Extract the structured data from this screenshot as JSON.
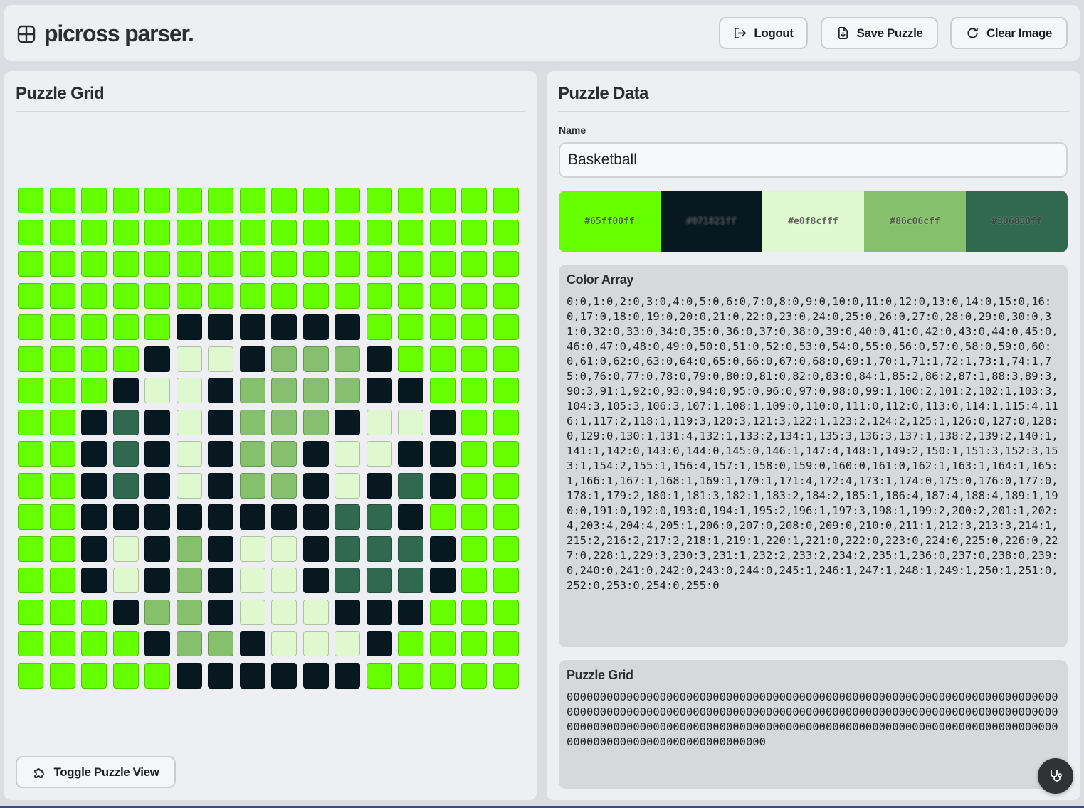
{
  "app": {
    "title": "picross parser."
  },
  "header": {
    "logout_label": "Logout",
    "save_label": "Save Puzzle",
    "clear_label": "Clear Image"
  },
  "left_panel": {
    "title": "Puzzle Grid",
    "toggle_label": "Toggle Puzzle View"
  },
  "right_panel": {
    "title": "Puzzle Data",
    "name_label": "Name",
    "name_value": "Basketball",
    "palette": [
      {
        "label": "#65ff00ff",
        "color": "#65ff00"
      },
      {
        "label": "#071821ff",
        "color": "#071821"
      },
      {
        "label": "#e0f8cfff",
        "color": "#e0f8cf"
      },
      {
        "label": "#86c06cff",
        "color": "#86c06c"
      },
      {
        "label": "#306850ff",
        "color": "#306850"
      }
    ],
    "color_array_title": "Color Array",
    "color_array_text": "0:0,1:0,2:0,3:0,4:0,5:0,6:0,7:0,8:0,9:0,10:0,11:0,12:0,13:0,14:0,15:0,16:0,17:0,18:0,19:0,20:0,21:0,22:0,23:0,24:0,25:0,26:0,27:0,28:0,29:0,30:0,31:0,32:0,33:0,34:0,35:0,36:0,37:0,38:0,39:0,40:0,41:0,42:0,43:0,44:0,45:0,46:0,47:0,48:0,49:0,50:0,51:0,52:0,53:0,54:0,55:0,56:0,57:0,58:0,59:0,60:0,61:0,62:0,63:0,64:0,65:0,66:0,67:0,68:0,69:1,70:1,71:1,72:1,73:1,74:1,75:0,76:0,77:0,78:0,79:0,80:0,81:0,82:0,83:0,84:1,85:2,86:2,87:1,88:3,89:3,90:3,91:1,92:0,93:0,94:0,95:0,96:0,97:0,98:0,99:1,100:2,101:2,102:1,103:3,104:3,105:3,106:3,107:1,108:1,109:0,110:0,111:0,112:0,113:0,114:1,115:4,116:1,117:2,118:1,119:3,120:3,121:3,122:1,123:2,124:2,125:1,126:0,127:0,128:0,129:0,130:1,131:4,132:1,133:2,134:1,135:3,136:3,137:1,138:2,139:2,140:1,141:1,142:0,143:0,144:0,145:0,146:1,147:4,148:1,149:2,150:1,151:3,152:3,153:1,154:2,155:1,156:4,157:1,158:0,159:0,160:0,161:0,162:1,163:1,164:1,165:1,166:1,167:1,168:1,169:1,170:1,171:4,172:4,173:1,174:0,175:0,176:0,177:0,178:1,179:2,180:1,181:3,182:1,183:2,184:2,185:1,186:4,187:4,188:4,189:1,190:0,191:0,192:0,193:0,194:1,195:2,196:1,197:3,198:1,199:2,200:2,201:1,202:4,203:4,204:4,205:1,206:0,207:0,208:0,209:0,210:0,211:1,212:3,213:3,214:1,215:2,216:2,217:2,218:1,219:1,220:1,221:0,222:0,223:0,224:0,225:0,226:0,227:0,228:1,229:3,230:3,231:1,232:2,233:2,234:2,235:1,236:0,237:0,238:0,239:0,240:0,241:0,242:0,243:0,244:0,245:1,246:1,247:1,248:1,249:1,250:1,251:0,252:0,253:0,254:0,255:0",
    "puzzle_grid_title": "Puzzle Grid",
    "puzzle_grid_text": "000000000000000000000000000000000000000000000000000000000000000000000000000000000000000000000000000000000000000000000000000000000000000000000000000000000000000000000000000000000000000000000000000000000000000000000000000000000000000000000000000000000000"
  },
  "grid": {
    "rows": 16,
    "cols": 16,
    "cells": [
      0,
      0,
      0,
      0,
      0,
      0,
      0,
      0,
      0,
      0,
      0,
      0,
      0,
      0,
      0,
      0,
      0,
      0,
      0,
      0,
      0,
      0,
      0,
      0,
      0,
      0,
      0,
      0,
      0,
      0,
      0,
      0,
      0,
      0,
      0,
      0,
      0,
      0,
      0,
      0,
      0,
      0,
      0,
      0,
      0,
      0,
      0,
      0,
      0,
      0,
      0,
      0,
      0,
      0,
      0,
      0,
      0,
      0,
      0,
      0,
      0,
      0,
      0,
      0,
      0,
      0,
      0,
      0,
      0,
      1,
      1,
      1,
      1,
      1,
      1,
      0,
      0,
      0,
      0,
      0,
      0,
      0,
      0,
      0,
      1,
      2,
      2,
      1,
      3,
      3,
      3,
      1,
      0,
      0,
      0,
      0,
      0,
      0,
      0,
      1,
      2,
      2,
      1,
      3,
      3,
      3,
      3,
      1,
      1,
      0,
      0,
      0,
      0,
      0,
      1,
      4,
      1,
      2,
      1,
      3,
      3,
      3,
      1,
      2,
      2,
      1,
      0,
      0,
      0,
      0,
      1,
      4,
      1,
      2,
      1,
      3,
      3,
      1,
      2,
      2,
      1,
      1,
      0,
      0,
      0,
      0,
      1,
      4,
      1,
      2,
      1,
      3,
      3,
      1,
      2,
      1,
      4,
      1,
      0,
      0,
      0,
      0,
      1,
      1,
      1,
      1,
      1,
      1,
      1,
      1,
      4,
      4,
      1,
      0,
      0,
      0,
      0,
      0,
      1,
      2,
      1,
      3,
      1,
      2,
      2,
      1,
      4,
      4,
      4,
      1,
      0,
      0,
      0,
      0,
      1,
      2,
      1,
      3,
      1,
      2,
      2,
      1,
      4,
      4,
      4,
      1,
      0,
      0,
      0,
      0,
      0,
      1,
      3,
      3,
      1,
      2,
      2,
      2,
      1,
      1,
      1,
      0,
      0,
      0,
      0,
      0,
      0,
      0,
      1,
      3,
      3,
      1,
      2,
      2,
      2,
      1,
      0,
      0,
      0,
      0,
      0,
      0,
      0,
      0,
      0,
      1,
      1,
      1,
      1,
      1,
      1,
      0,
      0,
      0,
      0,
      0
    ]
  },
  "icons": {
    "brand": "grid-icon",
    "logout": "logout-icon",
    "save": "save-file-icon",
    "clear": "refresh-icon",
    "toggle": "puzzle-icon",
    "fab": "stethoscope-icon"
  }
}
